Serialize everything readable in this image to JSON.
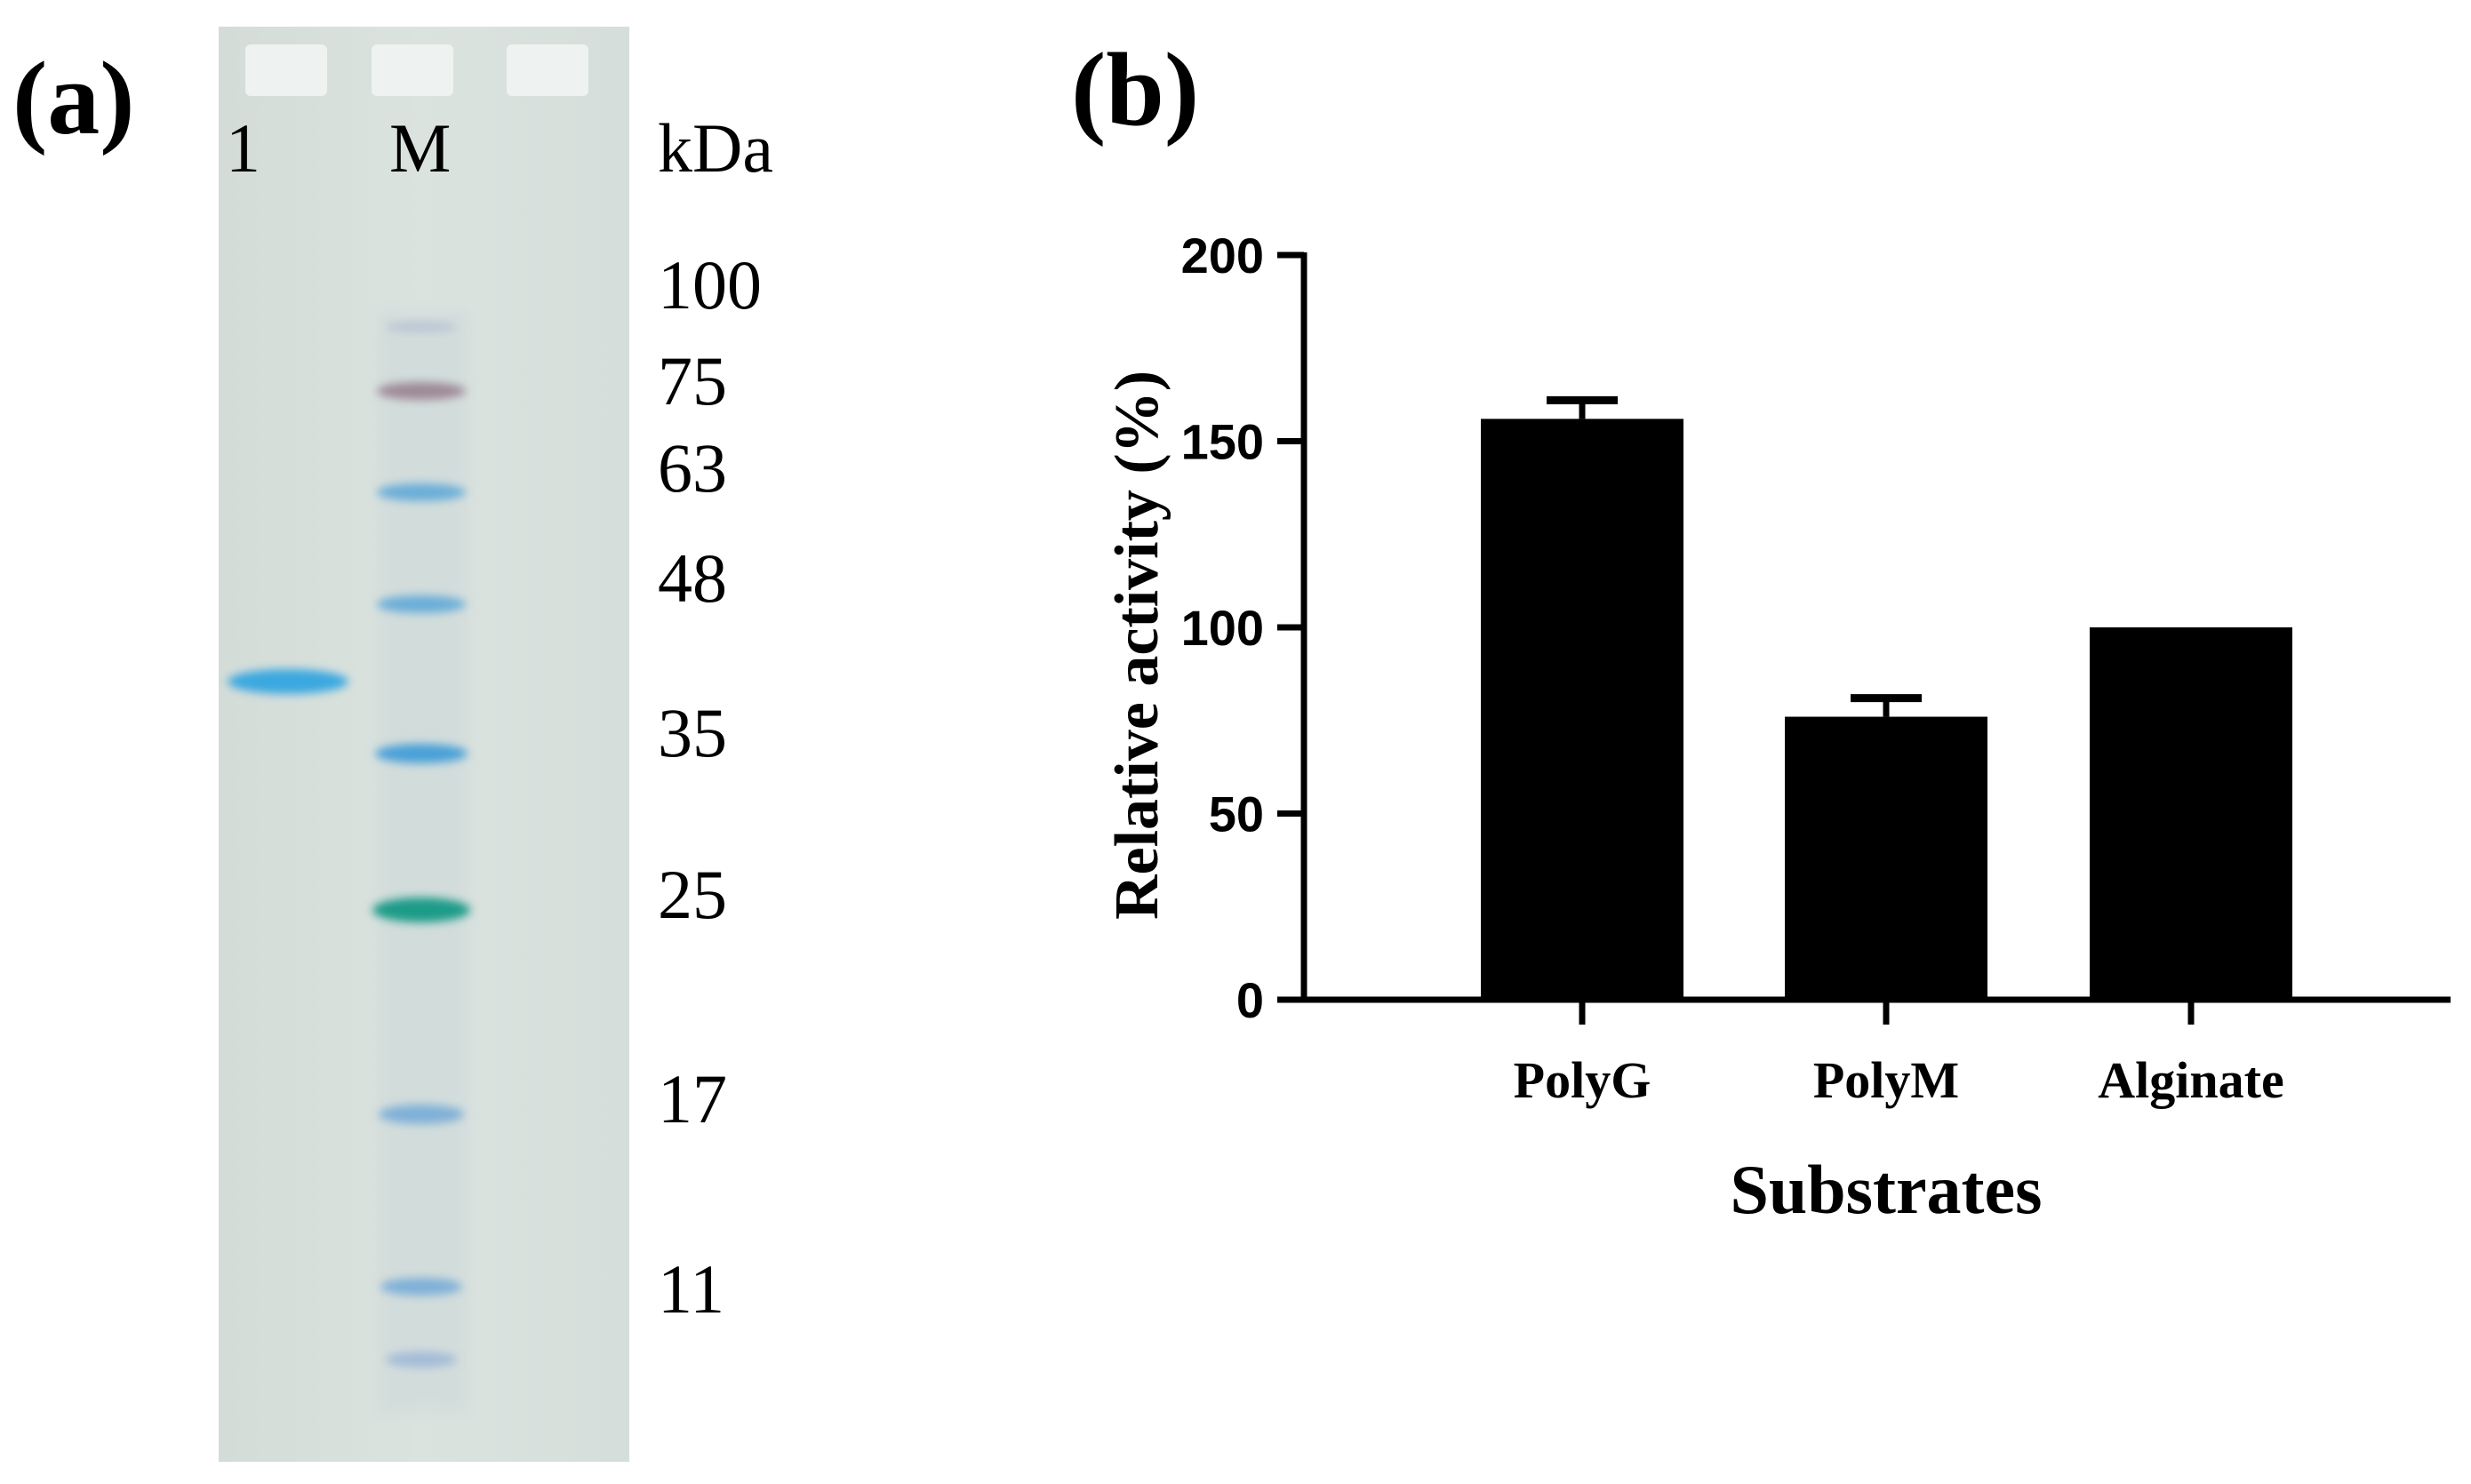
{
  "panel_a": {
    "label": "(a)",
    "lanes": [
      "1",
      "M"
    ],
    "unit": "kDa",
    "markers": [
      "100",
      "75",
      "63",
      "48",
      "35",
      "25",
      "17",
      "11"
    ]
  },
  "chart_data": {
    "type": "bar",
    "panel_label": "(b)",
    "categories": [
      "PolyG",
      "PolyM",
      "Alginate"
    ],
    "values": [
      156,
      76,
      100
    ],
    "errors": [
      5,
      5,
      0
    ],
    "xlabel": "Substrates",
    "ylabel": "Relative activity (%)",
    "ylim": [
      0,
      200
    ],
    "yticks": [
      "0",
      "50",
      "100",
      "150",
      "200"
    ],
    "bar_color": "#000000"
  }
}
